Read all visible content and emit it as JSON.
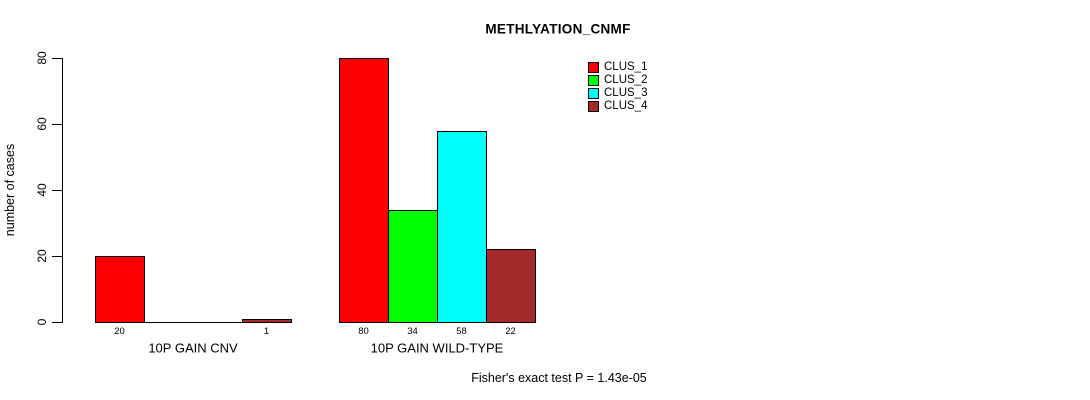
{
  "chart_data": {
    "type": "bar",
    "title": "METHLYATION_CNMF",
    "xlabel": "",
    "ylabel": "number of cases",
    "ylim": [
      0,
      80
    ],
    "yticks": [
      "0",
      "20",
      "40",
      "60",
      "80"
    ],
    "grid": false,
    "legend_position": "top-right",
    "categories": [
      "10P GAIN CNV",
      "10P GAIN WILD-TYPE"
    ],
    "series": [
      {
        "name": "CLUS_1",
        "color": "#FF0000",
        "values": [
          20,
          80
        ]
      },
      {
        "name": "CLUS_2",
        "color": "#00FF00",
        "values": [
          0,
          34
        ]
      },
      {
        "name": "CLUS_3",
        "color": "#00FFFF",
        "values": [
          0,
          58
        ]
      },
      {
        "name": "CLUS_4",
        "color": "#A52A2A",
        "values": [
          1,
          22
        ]
      }
    ],
    "bar_value_labels_shown": [
      "20",
      "1",
      "80",
      "34",
      "58",
      "22"
    ],
    "annotation": "Fisher's exact test P = 1.43e-05"
  }
}
